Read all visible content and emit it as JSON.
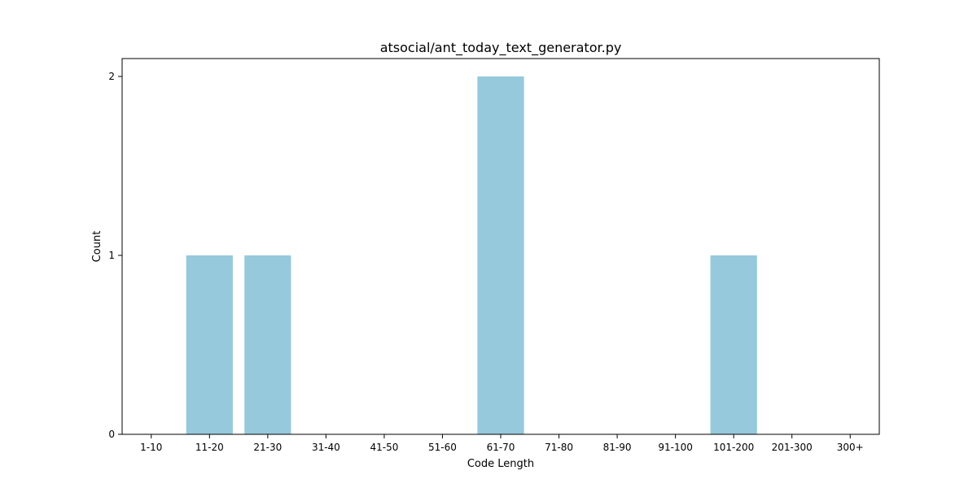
{
  "chart_data": {
    "type": "bar",
    "title": "atsocial/ant_today_text_generator.py",
    "xlabel": "Code Length",
    "ylabel": "Count",
    "categories": [
      "1-10",
      "11-20",
      "21-30",
      "31-40",
      "41-50",
      "51-60",
      "61-70",
      "71-80",
      "81-90",
      "91-100",
      "101-200",
      "201-300",
      "300+"
    ],
    "values": [
      0,
      1,
      1,
      0,
      0,
      0,
      2,
      0,
      0,
      0,
      1,
      0,
      0
    ],
    "ylim": [
      0,
      2.1
    ],
    "yticks": [
      0,
      1,
      2
    ],
    "grid": false,
    "legend": "none",
    "bar_color": "#96c9dc",
    "axis_color": "#000000"
  }
}
